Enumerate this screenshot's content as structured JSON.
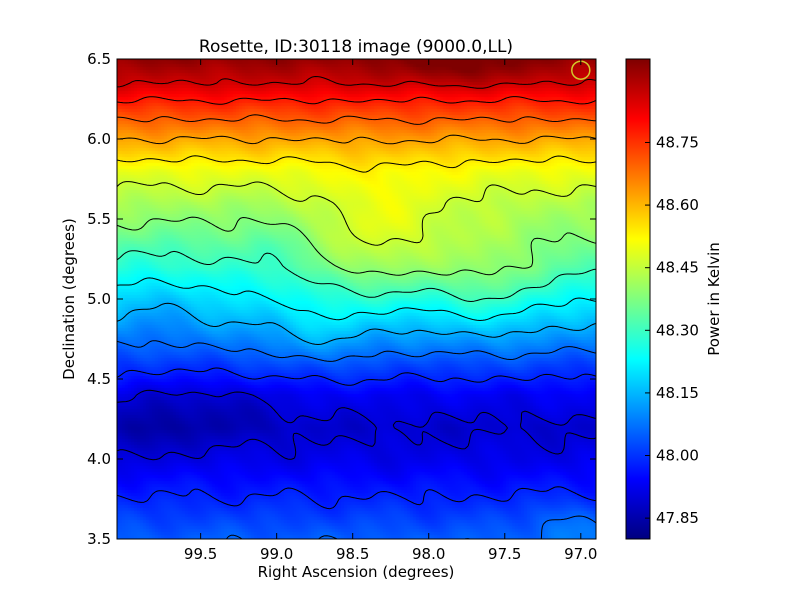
{
  "chart_data": {
    "type": "heatmap",
    "title": "Rosette, ID:30118 image (9000.0,LL)",
    "xlabel": "Right Ascension (degrees)",
    "ylabel": "Declination (degrees)",
    "colorbar_label": "Power in Kelvin",
    "xlim": [
      100.05,
      96.9
    ],
    "ylim": [
      3.5,
      6.5
    ],
    "x_ticks": [
      99.5,
      99.0,
      98.5,
      98.0,
      97.5,
      97.0
    ],
    "x_tick_labels": [
      "99.5",
      "99.0",
      "98.5",
      "98.0",
      "97.5",
      "97.0"
    ],
    "y_ticks": [
      3.5,
      4.0,
      4.5,
      5.0,
      5.5,
      6.0,
      6.5
    ],
    "y_tick_labels": [
      "3.5",
      "4.0",
      "4.5",
      "5.0",
      "5.5",
      "6.0",
      "6.5"
    ],
    "colorbar_range": [
      47.8,
      48.95
    ],
    "colorbar_ticks": [
      47.85,
      48.0,
      48.15,
      48.3,
      48.45,
      48.6,
      48.75
    ],
    "colorbar_tick_labels": [
      "47.85",
      "48.00",
      "48.15",
      "48.30",
      "48.45",
      "48.60",
      "48.75"
    ],
    "colormap": "jet",
    "contour_levels": [
      47.9,
      47.98,
      48.06,
      48.14,
      48.22,
      48.3,
      48.38,
      48.46,
      48.54,
      48.62,
      48.7,
      48.78,
      48.86
    ],
    "contour_color": "#000000",
    "beam_marker": {
      "ra": 97.0,
      "dec": 6.43,
      "color": "#d4c72a"
    },
    "dec_profile": {
      "dec": [
        3.5,
        3.8,
        4.0,
        4.2,
        4.4,
        4.6,
        4.8,
        5.0,
        5.2,
        5.4,
        5.6,
        5.8,
        6.0,
        6.2,
        6.35,
        6.5
      ],
      "power": [
        48.05,
        47.97,
        47.92,
        47.89,
        47.93,
        48.02,
        48.12,
        48.22,
        48.32,
        48.38,
        48.43,
        48.5,
        48.62,
        48.75,
        48.86,
        48.93
      ]
    },
    "features": [
      {
        "ra": 98.3,
        "dec": 5.35,
        "amp": 0.1,
        "sra": 0.45,
        "sdec": 0.4
      },
      {
        "ra": 97.6,
        "dec": 5.1,
        "amp": 0.08,
        "sra": 0.35,
        "sdec": 0.35
      },
      {
        "ra": 98.7,
        "dec": 4.8,
        "amp": 0.05,
        "sra": 0.3,
        "sdec": 0.25
      },
      {
        "ra": 99.5,
        "dec": 4.3,
        "amp": -0.05,
        "sra": 0.5,
        "sdec": 0.2
      },
      {
        "ra": 99.9,
        "dec": 4.15,
        "amp": -0.04,
        "sra": 0.2,
        "sdec": 0.15
      },
      {
        "ra": 99.8,
        "dec": 5.1,
        "amp": -0.06,
        "sra": 0.35,
        "sdec": 0.4
      },
      {
        "ra": 99.1,
        "dec": 5.3,
        "amp": -0.04,
        "sra": 0.3,
        "sdec": 0.3
      },
      {
        "ra": 97.8,
        "dec": 6.45,
        "amp": 0.05,
        "sra": 0.4,
        "sdec": 0.1
      },
      {
        "ra": 97.1,
        "dec": 3.6,
        "amp": 0.05,
        "sra": 0.25,
        "sdec": 0.15
      }
    ]
  }
}
